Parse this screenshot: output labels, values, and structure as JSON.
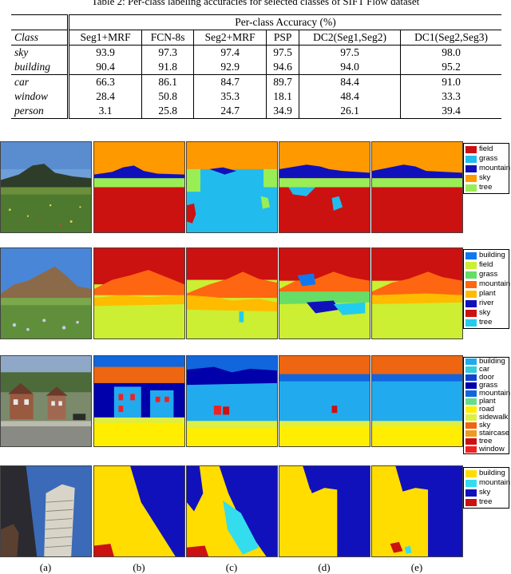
{
  "caption": "Table 2: Per-class labeling accuracies for selected classes of SIFT Flow dataset",
  "table": {
    "group_header": "Per-class Accuracy (%)",
    "class_header": "Class",
    "columns": [
      "Seg1+MRF",
      "FCN-8s",
      "Seg2+MRF",
      "PSP",
      "DC2(Seg1,Seg2)",
      "DC1(Seg2,Seg3)"
    ],
    "rows": [
      {
        "cls": "sky",
        "vals": [
          "93.9",
          "97.3",
          "97.4",
          "97.5",
          "97.5",
          "98.0"
        ]
      },
      {
        "cls": "building",
        "vals": [
          "90.4",
          "91.8",
          "92.9",
          "94.6",
          "94.0",
          "95.2"
        ]
      },
      {
        "cls": "car",
        "vals": [
          "66.3",
          "86.1",
          "84.7",
          "89.7",
          "84.4",
          "91.0"
        ]
      },
      {
        "cls": "window",
        "vals": [
          "28.4",
          "50.8",
          "35.3",
          "18.1",
          "48.4",
          "33.3"
        ]
      },
      {
        "cls": "person",
        "vals": [
          "3.1",
          "25.8",
          "24.7",
          "34.9",
          "26.1",
          "39.4"
        ]
      }
    ]
  },
  "legends": [
    [
      {
        "n": "field",
        "c": "#cc1111"
      },
      {
        "n": "grass",
        "c": "#22bbee"
      },
      {
        "n": "mountain",
        "c": "#1111bb"
      },
      {
        "n": "sky",
        "c": "#ff9900"
      },
      {
        "n": "tree",
        "c": "#99ee55"
      }
    ],
    [
      {
        "n": "building",
        "c": "#1177ee"
      },
      {
        "n": "field",
        "c": "#ccee33"
      },
      {
        "n": "grass",
        "c": "#66dd66"
      },
      {
        "n": "mountain",
        "c": "#ff6611"
      },
      {
        "n": "plant",
        "c": "#ffbb00"
      },
      {
        "n": "river",
        "c": "#1111bb"
      },
      {
        "n": "sky",
        "c": "#cc1111"
      },
      {
        "n": "tree",
        "c": "#22ccee"
      }
    ],
    [
      {
        "n": "building",
        "c": "#22aaee"
      },
      {
        "n": "car",
        "c": "#33ccdd"
      },
      {
        "n": "door",
        "c": "#1144cc"
      },
      {
        "n": "grass",
        "c": "#0000aa"
      },
      {
        "n": "mountain",
        "c": "#1166dd"
      },
      {
        "n": "plant",
        "c": "#66dd88"
      },
      {
        "n": "road",
        "c": "#ffee00"
      },
      {
        "n": "sidewalk",
        "c": "#ddee44"
      },
      {
        "n": "sky",
        "c": "#ee6611"
      },
      {
        "n": "staircase",
        "c": "#ee9922"
      },
      {
        "n": "tree",
        "c": "#cc1111"
      },
      {
        "n": "window",
        "c": "#ee2222"
      }
    ],
    [
      {
        "n": "building",
        "c": "#ffdd00"
      },
      {
        "n": "mountain",
        "c": "#33ddee"
      },
      {
        "n": "sky",
        "c": "#1111bb"
      },
      {
        "n": "tree",
        "c": "#cc1111"
      }
    ]
  ],
  "panel_labels": [
    "(a)",
    "(b)",
    "(c)",
    "(d)",
    "(e)"
  ]
}
